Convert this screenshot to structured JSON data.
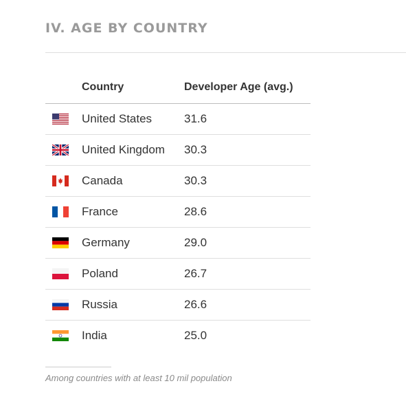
{
  "title": "IV. AGE BY COUNTRY",
  "footnote": "Among countries with at least 10 mil population",
  "chart_data": {
    "type": "table",
    "columns": [
      "",
      "Country",
      "Developer Age (avg.)"
    ],
    "rows": [
      {
        "flag_icon": "flag-us-icon",
        "country": "United States",
        "age": "31.6"
      },
      {
        "flag_icon": "flag-uk-icon",
        "country": "United Kingdom",
        "age": "30.3"
      },
      {
        "flag_icon": "flag-canada-icon",
        "country": "Canada",
        "age": "30.3"
      },
      {
        "flag_icon": "flag-france-icon",
        "country": "France",
        "age": "28.6"
      },
      {
        "flag_icon": "flag-germany-icon",
        "country": "Germany",
        "age": "29.0"
      },
      {
        "flag_icon": "flag-poland-icon",
        "country": "Poland",
        "age": "26.7"
      },
      {
        "flag_icon": "flag-russia-icon",
        "country": "Russia",
        "age": "26.6"
      },
      {
        "flag_icon": "flag-india-icon",
        "country": "India",
        "age": "25.0"
      }
    ]
  }
}
